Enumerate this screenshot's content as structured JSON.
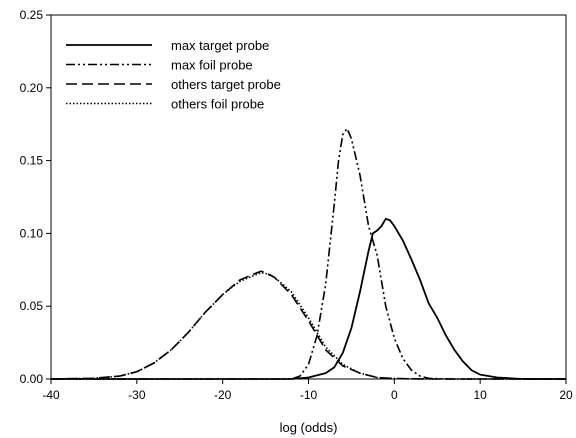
{
  "chart_data": {
    "type": "line",
    "title": "",
    "xlabel": "log (odds)",
    "ylabel": "",
    "xlim": [
      -40,
      20
    ],
    "ylim": [
      0,
      0.25
    ],
    "xticks": [
      "-40",
      "-30",
      "-20",
      "-10",
      "0",
      "10",
      "20"
    ],
    "yticks": [
      "0.00",
      "0.05",
      "0.10",
      "0.15",
      "0.20",
      "0.25"
    ],
    "grid": false,
    "legend_position": "top-left",
    "series": [
      {
        "name": "max target probe",
        "dash": "solid",
        "x": [
          -40,
          -12,
          -10,
          -8,
          -7,
          -6,
          -5,
          -4,
          -3,
          -2.5,
          -2,
          -1.5,
          -1,
          -0.5,
          0,
          1,
          2,
          3,
          4,
          5,
          6,
          7,
          8,
          9,
          10,
          12,
          15,
          20
        ],
        "y": [
          0,
          0,
          0.001,
          0.004,
          0.008,
          0.018,
          0.035,
          0.06,
          0.088,
          0.1,
          0.102,
          0.105,
          0.11,
          0.109,
          0.105,
          0.095,
          0.082,
          0.068,
          0.052,
          0.042,
          0.03,
          0.02,
          0.012,
          0.006,
          0.003,
          0.001,
          0,
          0
        ]
      },
      {
        "name": "max foil probe",
        "dash": "dash-dot-dot",
        "x": [
          -40,
          -12,
          -11,
          -10,
          -9,
          -8,
          -7,
          -6.5,
          -6,
          -5.5,
          -5,
          -4,
          -3,
          -2,
          -1,
          0,
          1,
          2,
          3,
          4,
          6,
          20
        ],
        "y": [
          0,
          0,
          0.002,
          0.01,
          0.03,
          0.065,
          0.12,
          0.15,
          0.168,
          0.172,
          0.165,
          0.14,
          0.105,
          0.085,
          0.05,
          0.028,
          0.014,
          0.006,
          0.002,
          0.0005,
          0,
          0
        ]
      },
      {
        "name": "others target probe",
        "dash": "long-dash",
        "x": [
          -40,
          -35,
          -32,
          -30,
          -28,
          -26,
          -24,
          -22,
          -20,
          -18,
          -16,
          -15.5,
          -15,
          -14,
          -12,
          -10,
          -8,
          -6,
          -4,
          -2,
          0,
          2,
          4,
          20
        ],
        "y": [
          0,
          0.0005,
          0.002,
          0.005,
          0.011,
          0.02,
          0.032,
          0.046,
          0.058,
          0.068,
          0.073,
          0.074,
          0.073,
          0.07,
          0.058,
          0.04,
          0.02,
          0.009,
          0.004,
          0.001,
          0.0003,
          0.0001,
          0,
          0
        ]
      },
      {
        "name": "others foil probe",
        "dash": "dotted",
        "x": [
          -40,
          -35,
          -32,
          -30,
          -28,
          -26,
          -24,
          -22,
          -20,
          -18,
          -16,
          -15.5,
          -15,
          -14,
          -12,
          -10,
          -8,
          -6,
          -4,
          -2,
          0,
          2,
          4,
          20
        ],
        "y": [
          0,
          0.0005,
          0.002,
          0.005,
          0.011,
          0.02,
          0.032,
          0.046,
          0.058,
          0.067,
          0.072,
          0.073,
          0.0725,
          0.07,
          0.06,
          0.042,
          0.022,
          0.01,
          0.004,
          0.001,
          0.0003,
          0.0001,
          0,
          0
        ]
      }
    ]
  }
}
